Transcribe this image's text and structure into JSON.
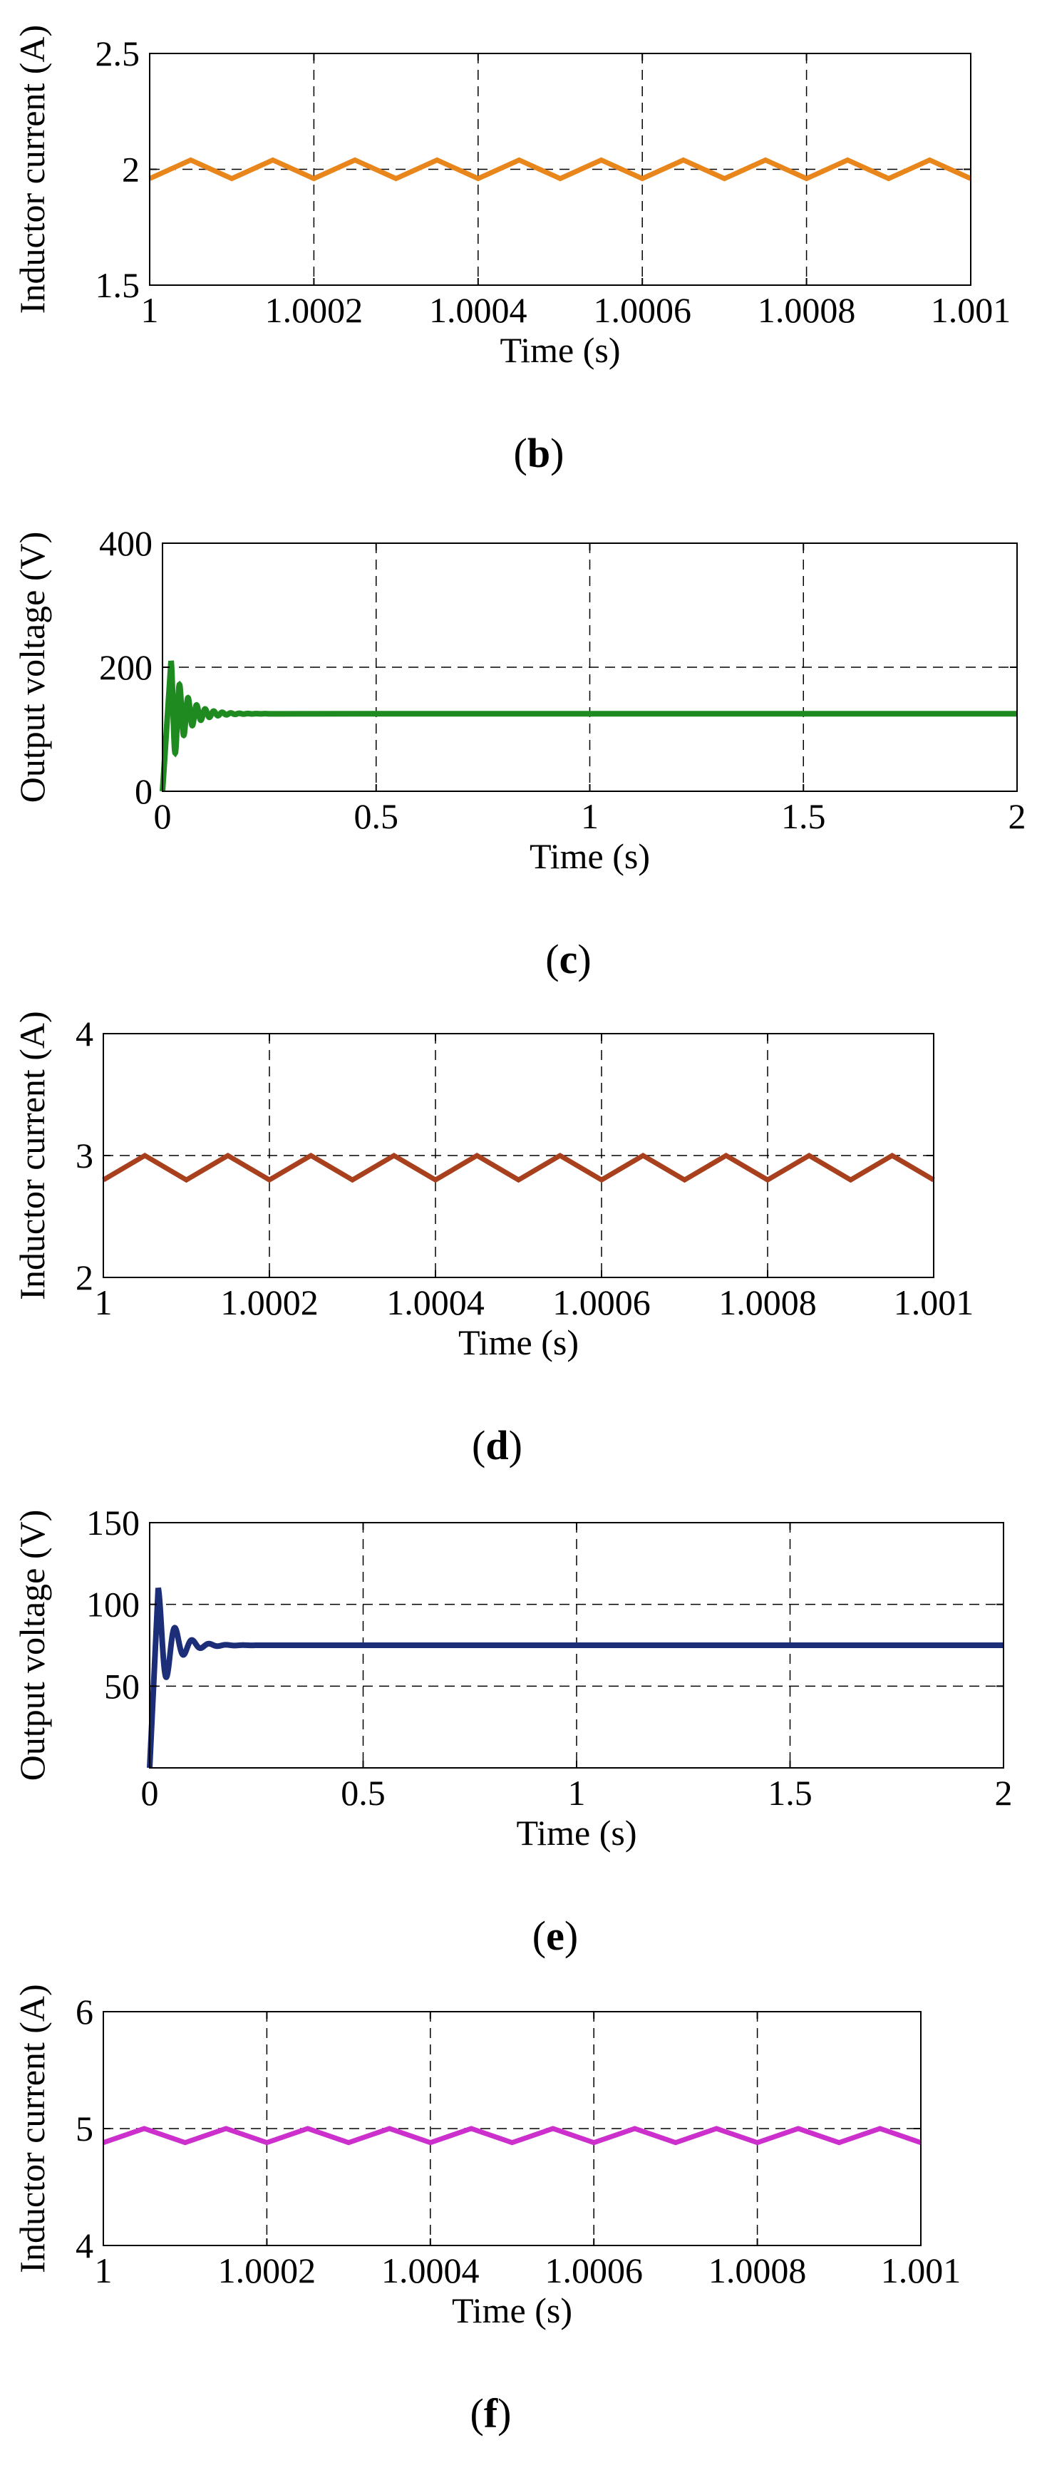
{
  "chart_data": [
    {
      "id": "b",
      "type": "line",
      "caption_letter": "b",
      "xlabel": "Time (s)",
      "ylabel": "Inductor current (A)",
      "xlim": [
        1,
        1.001
      ],
      "ylim": [
        1.5,
        2.5
      ],
      "xticks": [
        1,
        1.0002,
        1.0004,
        1.0006,
        1.0008,
        1.001
      ],
      "xtick_labels": [
        "1",
        "1.0002",
        "1.0004",
        "1.0006",
        "1.0008",
        "1.001"
      ],
      "yticks": [
        1.5,
        2,
        2.5
      ],
      "ytick_labels": [
        "1.5",
        "2",
        "2.5"
      ],
      "xgrid": [
        1.0002,
        1.0004,
        1.0006,
        1.0008
      ],
      "ygrid": [
        2
      ],
      "grid": true,
      "series": [
        {
          "name": "Inductor current",
          "color": "#e8861c",
          "waveform": "triangle",
          "x_start": 1,
          "x_end": 1.001,
          "period": 0.0001,
          "peak_offset": 5e-05,
          "min": 1.96,
          "max": 2.04
        }
      ]
    },
    {
      "id": "c",
      "type": "line",
      "caption_letter": "c",
      "xlabel": "Time (s)",
      "ylabel": "Output voltage (V)",
      "xlim": [
        0,
        2
      ],
      "ylim": [
        0,
        400
      ],
      "xticks": [
        0,
        0.5,
        1,
        1.5,
        2
      ],
      "xtick_labels": [
        "0",
        "0.5",
        "1",
        "1.5",
        "2"
      ],
      "yticks": [
        0,
        200,
        400
      ],
      "ytick_labels": [
        "0",
        "200",
        "400"
      ],
      "xgrid": [
        0.5,
        1,
        1.5
      ],
      "ygrid": [
        200
      ],
      "grid": true,
      "series": [
        {
          "name": "Output voltage",
          "color": "#1f8a1f",
          "waveform": "damped",
          "x_start": 0,
          "x_end": 2,
          "steady": 125,
          "initial_peak": 210,
          "first_peak_at": 0.02,
          "decay": 30,
          "oscillation_period": 0.02
        }
      ]
    },
    {
      "id": "d",
      "type": "line",
      "caption_letter": "d",
      "xlabel": "Time (s)",
      "ylabel": "Inductor current (A)",
      "xlim": [
        1,
        1.001
      ],
      "ylim": [
        2,
        4
      ],
      "xticks": [
        1,
        1.0002,
        1.0004,
        1.0006,
        1.0008,
        1.001
      ],
      "xtick_labels": [
        "1",
        "1.0002",
        "1.0004",
        "1.0006",
        "1.0008",
        "1.001"
      ],
      "yticks": [
        2,
        3,
        4
      ],
      "ytick_labels": [
        "2",
        "3",
        "4"
      ],
      "xgrid": [
        1.0002,
        1.0004,
        1.0006,
        1.0008
      ],
      "ygrid": [
        3
      ],
      "grid": true,
      "series": [
        {
          "name": "Inductor current",
          "color": "#a8401e",
          "waveform": "triangle",
          "x_start": 1,
          "x_end": 1.001,
          "period": 0.0001,
          "peak_offset": 5e-05,
          "min": 2.8,
          "max": 3.0
        }
      ]
    },
    {
      "id": "e",
      "type": "line",
      "caption_letter": "e",
      "xlabel": "Time (s)",
      "ylabel": "Output voltage (V)",
      "xlim": [
        0,
        2
      ],
      "ylim": [
        0,
        150
      ],
      "xticks": [
        0,
        0.5,
        1,
        1.5,
        2
      ],
      "xtick_labels": [
        "0",
        "0.5",
        "1",
        "1.5",
        "2"
      ],
      "yticks": [
        50,
        100,
        150
      ],
      "ytick_labels": [
        "50",
        "100",
        "150"
      ],
      "xgrid": [
        0.5,
        1,
        1.5
      ],
      "ygrid": [
        50,
        100
      ],
      "grid": true,
      "series": [
        {
          "name": "Output voltage",
          "color": "#1d2e78",
          "waveform": "damped",
          "x_start": 0,
          "x_end": 2,
          "steady": 75,
          "initial_peak": 110,
          "first_peak_at": 0.02,
          "decay": 30,
          "oscillation_period": 0.04
        }
      ]
    },
    {
      "id": "f",
      "type": "line",
      "caption_letter": "f",
      "xlabel": "Time (s)",
      "ylabel": "Inductor current (A)",
      "xlim": [
        1,
        1.001
      ],
      "ylim": [
        4,
        6
      ],
      "xticks": [
        1,
        1.0002,
        1.0004,
        1.0006,
        1.0008,
        1.001
      ],
      "xtick_labels": [
        "1",
        "1.0002",
        "1.0004",
        "1.0006",
        "1.0008",
        "1.001"
      ],
      "yticks": [
        4,
        5,
        6
      ],
      "ytick_labels": [
        "4",
        "5",
        "6"
      ],
      "xgrid": [
        1.0002,
        1.0004,
        1.0006,
        1.0008
      ],
      "ygrid": [
        5
      ],
      "grid": true,
      "series": [
        {
          "name": "Inductor current",
          "color": "#cc2fcc",
          "waveform": "triangle",
          "x_start": 1,
          "x_end": 1.001,
          "period": 0.0001,
          "peak_offset": 5e-05,
          "min": 4.88,
          "max": 5.0
        }
      ]
    }
  ]
}
